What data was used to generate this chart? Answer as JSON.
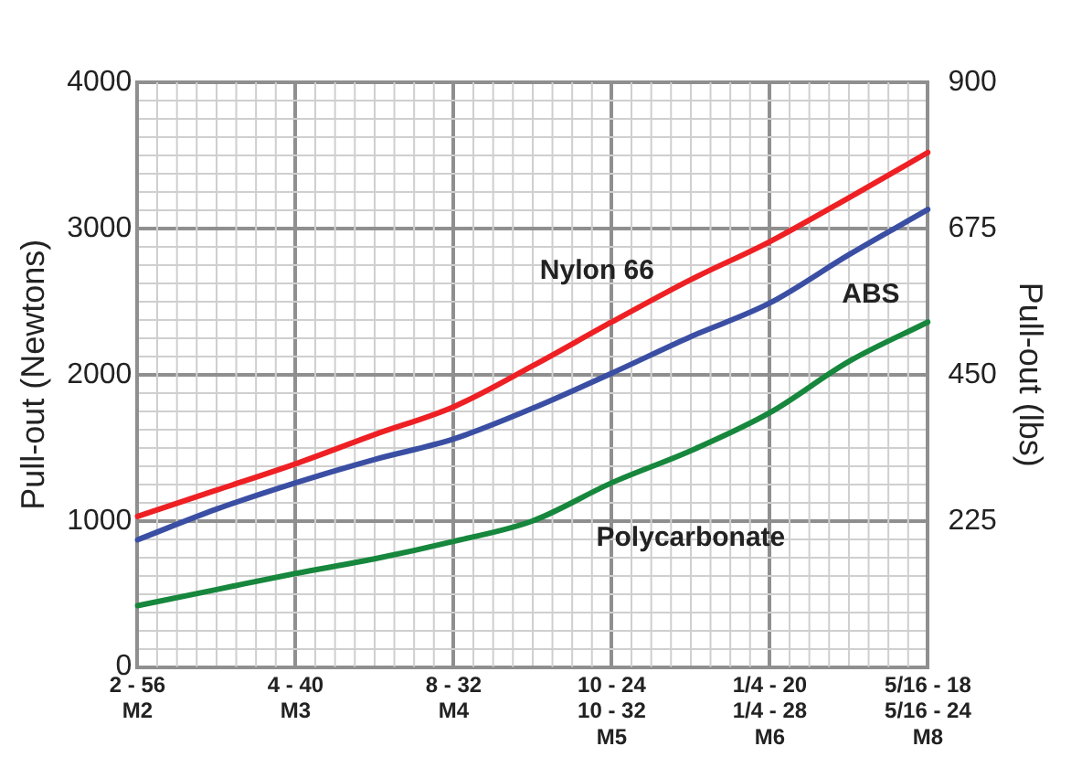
{
  "chart_data": {
    "type": "line",
    "ylabel": "Pull-out (Newtons)",
    "y2label": "Pull-out (lbs)",
    "categories": [
      "2 - 56\nM2",
      null,
      "4 - 40\nM3",
      null,
      "8 - 32\nM4",
      null,
      "10 - 24\n10 - 32\nM5",
      null,
      "1/4 - 20\n1/4 - 28\nM6",
      null,
      "5/16 - 18\n5/16 - 24\nM8"
    ],
    "series": [
      {
        "name": "Nylon 66",
        "color": "#ee2024",
        "values": [
          1030,
          1210,
          1390,
          1590,
          1780,
          2060,
          2360,
          2650,
          2910,
          3210,
          3520
        ]
      },
      {
        "name": "ABS",
        "color": "#3a4fa3",
        "values": [
          870,
          1080,
          1260,
          1420,
          1560,
          1770,
          2010,
          2260,
          2490,
          2820,
          3130
        ]
      },
      {
        "name": "Polycarbonate",
        "color": "#16873c",
        "values": [
          420,
          530,
          640,
          740,
          860,
          1000,
          1260,
          1480,
          1740,
          2090,
          2360
        ]
      }
    ],
    "ylim": [
      0,
      4000
    ],
    "yticks": [
      0,
      {
        "value": 125,
        "label": null
      },
      {
        "value": 250,
        "label": null
      },
      {
        "value": 375,
        "label": null
      },
      {
        "value": 500,
        "label": null
      },
      {
        "value": 625,
        "label": null
      },
      {
        "value": 750,
        "label": null
      },
      {
        "value": 875,
        "label": null
      },
      1000,
      {
        "value": 1125,
        "label": null
      },
      {
        "value": 1250,
        "label": null
      },
      {
        "value": 1375,
        "label": null
      },
      {
        "value": 1500,
        "label": null
      },
      {
        "value": 1625,
        "label": null
      },
      {
        "value": 1750,
        "label": null
      },
      {
        "value": 1875,
        "label": null
      },
      2000,
      {
        "value": 2125,
        "label": null
      },
      {
        "value": 2250,
        "label": null
      },
      {
        "value": 2375,
        "label": null
      },
      {
        "value": 2500,
        "label": null
      },
      {
        "value": 2625,
        "label": null
      },
      {
        "value": 2750,
        "label": null
      },
      {
        "value": 2875,
        "label": null
      },
      3000,
      {
        "value": 3125,
        "label": null
      },
      {
        "value": 3250,
        "label": null
      },
      {
        "value": 3375,
        "label": null
      },
      {
        "value": 3500,
        "label": null
      },
      {
        "value": 3625,
        "label": null
      },
      {
        "value": 3750,
        "label": null
      },
      {
        "value": 3875,
        "label": null
      },
      4000
    ],
    "y2lim": [
      0,
      900
    ],
    "y2ticks": [
      225,
      450,
      675,
      900
    ],
    "grid": true,
    "legend": false,
    "marker": "none",
    "line_style": "solid"
  }
}
